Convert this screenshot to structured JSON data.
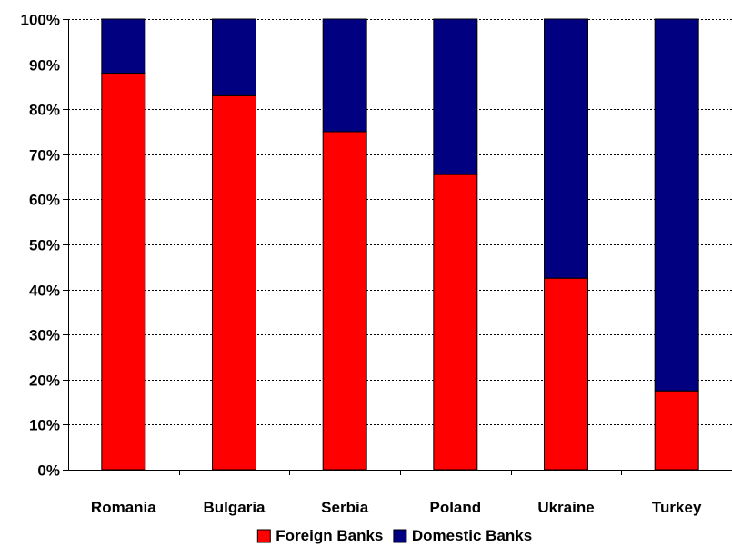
{
  "chart_data": {
    "type": "bar",
    "stacked": true,
    "categories": [
      "Romania",
      "Bulgaria",
      "Serbia",
      "Poland",
      "Ukraine",
      "Turkey"
    ],
    "series": [
      {
        "name": "Foreign Banks",
        "color": "#ff0000",
        "values": [
          88,
          83,
          75,
          65.5,
          42.5,
          17.5
        ]
      },
      {
        "name": "Domestic Banks",
        "color": "#000080",
        "values": [
          12,
          17,
          25,
          34.5,
          57.5,
          82.5
        ]
      }
    ],
    "ylim": [
      0,
      100
    ],
    "yticks": [
      "0%",
      "10%",
      "20%",
      "30%",
      "40%",
      "50%",
      "60%",
      "70%",
      "80%",
      "90%",
      "100%"
    ],
    "grid": true,
    "legend": "bottom",
    "title": "",
    "xlabel": "",
    "ylabel": ""
  }
}
